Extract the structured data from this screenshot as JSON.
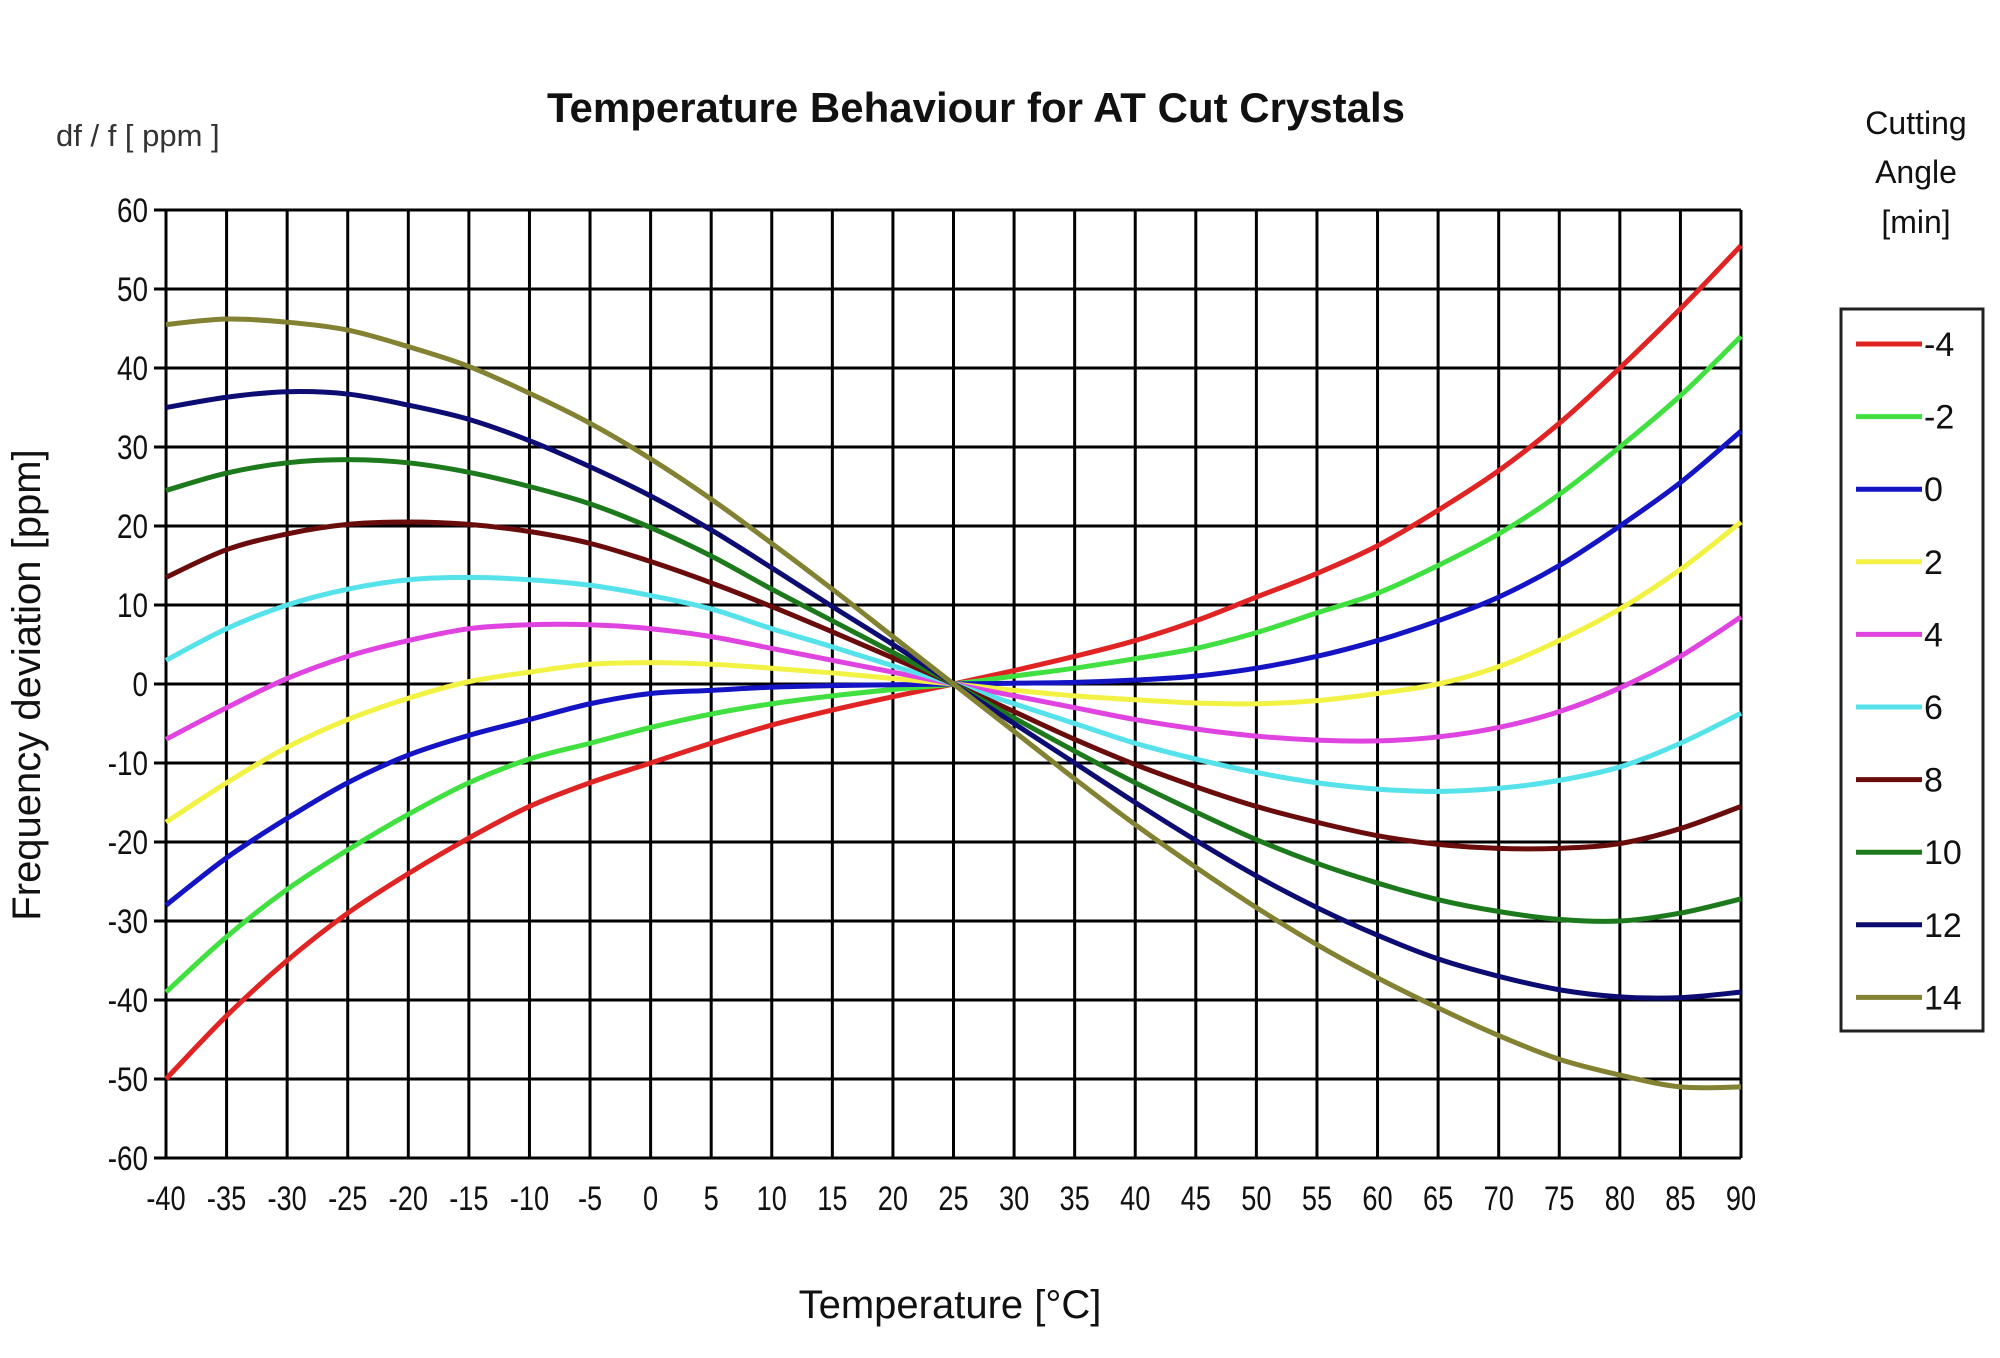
{
  "chart_data": {
    "type": "line",
    "title": "Temperature Behaviour for AT Cut Crystals",
    "unit_label": "df / f [ ppm ]",
    "xlabel": "Temperature [°C]",
    "ylabel": "Frequency deviation [ppm]",
    "xlim": [
      -40,
      90
    ],
    "ylim": [
      -60,
      60
    ],
    "x_ticks": [
      -40,
      -35,
      -30,
      -25,
      -20,
      -15,
      -10,
      -5,
      0,
      5,
      10,
      15,
      20,
      25,
      30,
      35,
      40,
      45,
      50,
      55,
      60,
      65,
      70,
      75,
      80,
      85,
      90
    ],
    "y_ticks": [
      60,
      50,
      40,
      30,
      20,
      10,
      0,
      -10,
      -20,
      -30,
      -40,
      -50,
      -60
    ],
    "grid": true,
    "legend": {
      "title": [
        "Cutting",
        "Angle",
        "[min]"
      ],
      "placement": "right"
    },
    "x": [
      -40,
      -35,
      -30,
      -25,
      -20,
      -15,
      -10,
      -5,
      0,
      5,
      10,
      15,
      20,
      25,
      30,
      35,
      40,
      45,
      50,
      55,
      60,
      65,
      70,
      75,
      80,
      85,
      90
    ],
    "series": [
      {
        "name": "-4",
        "color": "#e02424",
        "values": [
          -50,
          -42,
          -35,
          -29,
          -24,
          -19.5,
          -15.5,
          -12.5,
          -10,
          -7.5,
          -5.2,
          -3.3,
          -1.6,
          0,
          1.7,
          3.5,
          5.5,
          8,
          11,
          14,
          17.5,
          22,
          27,
          33,
          40,
          47.5,
          55.5
        ]
      },
      {
        "name": "-2",
        "color": "#3fe03f",
        "values": [
          -39,
          -32,
          -26,
          -21,
          -16.5,
          -12.5,
          -9.5,
          -7.5,
          -5.5,
          -3.8,
          -2.5,
          -1.5,
          -0.7,
          0,
          1,
          2,
          3.2,
          4.5,
          6.5,
          9,
          11.5,
          15,
          19,
          24,
          30,
          36.5,
          44
        ]
      },
      {
        "name": "0",
        "color": "#1414c4",
        "values": [
          -28,
          -22,
          -17,
          -12.5,
          -9,
          -6.5,
          -4.5,
          -2.5,
          -1.2,
          -0.8,
          -0.4,
          -0.2,
          -0.1,
          0,
          0.1,
          0.2,
          0.5,
          1,
          2,
          3.5,
          5.5,
          8,
          11,
          15,
          20,
          25.5,
          32
        ]
      },
      {
        "name": "2",
        "color": "#f2f244",
        "values": [
          -17.5,
          -12.5,
          -8,
          -4.5,
          -1.8,
          0.3,
          1.5,
          2.5,
          2.7,
          2.5,
          2,
          1.4,
          0.7,
          0,
          -0.8,
          -1.5,
          -2,
          -2.4,
          -2.5,
          -2.1,
          -1.2,
          0,
          2.2,
          5.5,
          9.5,
          14.5,
          20.5
        ]
      },
      {
        "name": "4",
        "color": "#e044e0",
        "values": [
          -7,
          -3,
          0.7,
          3.5,
          5.5,
          7,
          7.5,
          7.5,
          7,
          6,
          4.5,
          3,
          1.5,
          0,
          -1.5,
          -3,
          -4.5,
          -5.7,
          -6.6,
          -7.1,
          -7.2,
          -6.7,
          -5.5,
          -3.5,
          -0.5,
          3.5,
          8.5
        ]
      },
      {
        "name": "6",
        "color": "#55e2ea",
        "values": [
          3,
          7,
          10,
          12,
          13.2,
          13.5,
          13.2,
          12.5,
          11.2,
          9.5,
          7,
          4.7,
          2.3,
          0,
          -2.5,
          -5,
          -7.5,
          -9.5,
          -11.2,
          -12.5,
          -13.3,
          -13.6,
          -13.2,
          -12.2,
          -10.5,
          -7.5,
          -3.7
        ]
      },
      {
        "name": "8",
        "color": "#6a0c0c",
        "values": [
          13.5,
          17,
          19,
          20.2,
          20.5,
          20.2,
          19.3,
          17.8,
          15.5,
          12.8,
          9.8,
          6.6,
          3.3,
          0,
          -3.5,
          -7,
          -10.2,
          -13,
          -15.5,
          -17.5,
          -19.2,
          -20.3,
          -20.8,
          -20.8,
          -20.2,
          -18.3,
          -15.5
        ]
      },
      {
        "name": "10",
        "color": "#1c7a1c",
        "values": [
          24.5,
          26.7,
          28,
          28.4,
          28,
          26.8,
          25,
          22.8,
          19.8,
          16.2,
          12,
          8,
          4,
          0,
          -4.3,
          -8.5,
          -12.5,
          -16.2,
          -19.7,
          -22.7,
          -25.2,
          -27.3,
          -28.8,
          -29.8,
          -30,
          -29,
          -27.2
        ]
      },
      {
        "name": "12",
        "color": "#0c0c72",
        "values": [
          35,
          36.3,
          37,
          36.7,
          35.3,
          33.5,
          30.8,
          27.5,
          23.8,
          19.5,
          14.7,
          9.8,
          5,
          0,
          -5,
          -10,
          -15,
          -19.8,
          -24.3,
          -28.3,
          -31.8,
          -34.8,
          -37,
          -38.7,
          -39.6,
          -39.7,
          -39
        ]
      },
      {
        "name": "14",
        "color": "#828232",
        "values": [
          45.5,
          46.2,
          45.8,
          44.8,
          42.7,
          40.2,
          36.8,
          33,
          28.5,
          23.4,
          17.8,
          12,
          6,
          0,
          -6,
          -12,
          -17.8,
          -23.2,
          -28.3,
          -33,
          -37.2,
          -41,
          -44.5,
          -47.5,
          -49.5,
          -51,
          -51
        ]
      }
    ]
  }
}
